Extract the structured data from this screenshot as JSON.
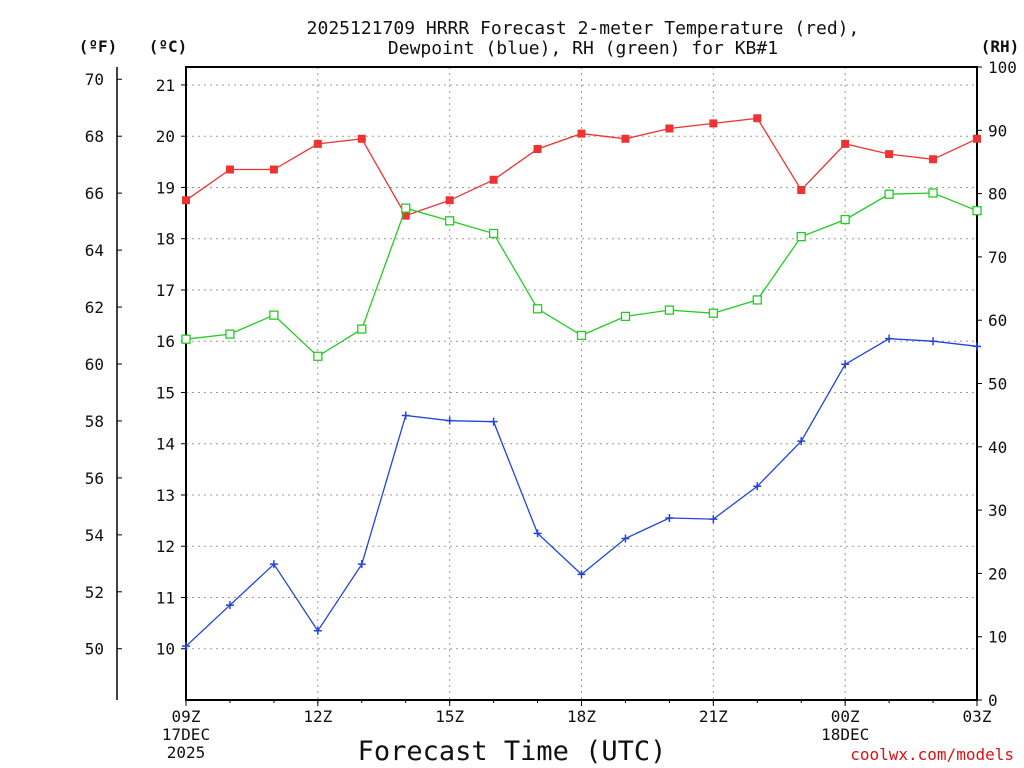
{
  "chart_data": {
    "type": "line",
    "title_line1": "2025121709 HRRR Forecast 2-meter Temperature (red),",
    "title_line2": "Dewpoint (blue), RH (green) for KB#1",
    "xlabel": "Forecast Time (UTC)",
    "credit": "coolwx.com/models",
    "units": {
      "fahrenheit": "(ºF)",
      "celsius": "(ºC)",
      "rh": "(RH)"
    },
    "grid": true,
    "y_celsius": {
      "lim": [
        9,
        21.35
      ],
      "ticks": [
        "10",
        "11",
        "12",
        "13",
        "14",
        "15",
        "16",
        "17",
        "18",
        "19",
        "20",
        "21"
      ]
    },
    "y_fahrenheit": {
      "ticks": [
        "50",
        "52",
        "54",
        "56",
        "58",
        "60",
        "62",
        "64",
        "66",
        "68",
        "70"
      ]
    },
    "y_rh": {
      "lim": [
        0,
        100
      ],
      "ticks": [
        "0",
        "10",
        "20",
        "30",
        "40",
        "50",
        "60",
        "70",
        "80",
        "90",
        "100"
      ]
    },
    "x": [
      "09Z",
      "10Z",
      "11Z",
      "12Z",
      "13Z",
      "14Z",
      "15Z",
      "16Z",
      "17Z",
      "18Z",
      "19Z",
      "20Z",
      "21Z",
      "22Z",
      "23Z",
      "00Z",
      "01Z",
      "02Z",
      "03Z"
    ],
    "x_tick_labels": [
      {
        "index": 0,
        "lines": [
          "09Z",
          "17DEC",
          "2025"
        ]
      },
      {
        "index": 3,
        "lines": [
          "12Z"
        ]
      },
      {
        "index": 6,
        "lines": [
          "15Z"
        ]
      },
      {
        "index": 9,
        "lines": [
          "18Z"
        ]
      },
      {
        "index": 12,
        "lines": [
          "21Z"
        ]
      },
      {
        "index": 15,
        "lines": [
          "00Z",
          "18DEC"
        ]
      },
      {
        "index": 18,
        "lines": [
          "03Z"
        ]
      }
    ],
    "series": [
      {
        "name": "Temperature",
        "axis": "celsius",
        "color": "#ee3333",
        "marker": "filled-square",
        "values": [
          18.75,
          19.35,
          19.35,
          19.85,
          19.95,
          18.45,
          18.75,
          19.15,
          19.75,
          20.05,
          19.95,
          20.15,
          20.25,
          20.35,
          18.95,
          19.85,
          19.65,
          19.55,
          19.95
        ]
      },
      {
        "name": "Dewpoint",
        "axis": "celsius",
        "color": "#2244dd",
        "marker": "plus",
        "values": [
          10.05,
          10.85,
          11.65,
          10.35,
          11.65,
          14.55,
          14.45,
          14.43,
          12.25,
          11.45,
          12.15,
          12.55,
          12.53,
          13.17,
          14.05,
          15.55,
          16.05,
          16.0,
          15.9
        ]
      },
      {
        "name": "RH",
        "axis": "rh",
        "color": "#22cc22",
        "marker": "open-square",
        "values": [
          57,
          57.8,
          60.8,
          54.3,
          58.6,
          77.7,
          75.7,
          73.7,
          61.8,
          57.6,
          60.6,
          61.6,
          61.1,
          63.2,
          73.2,
          75.9,
          79.9,
          80.1,
          77.3
        ]
      }
    ]
  }
}
